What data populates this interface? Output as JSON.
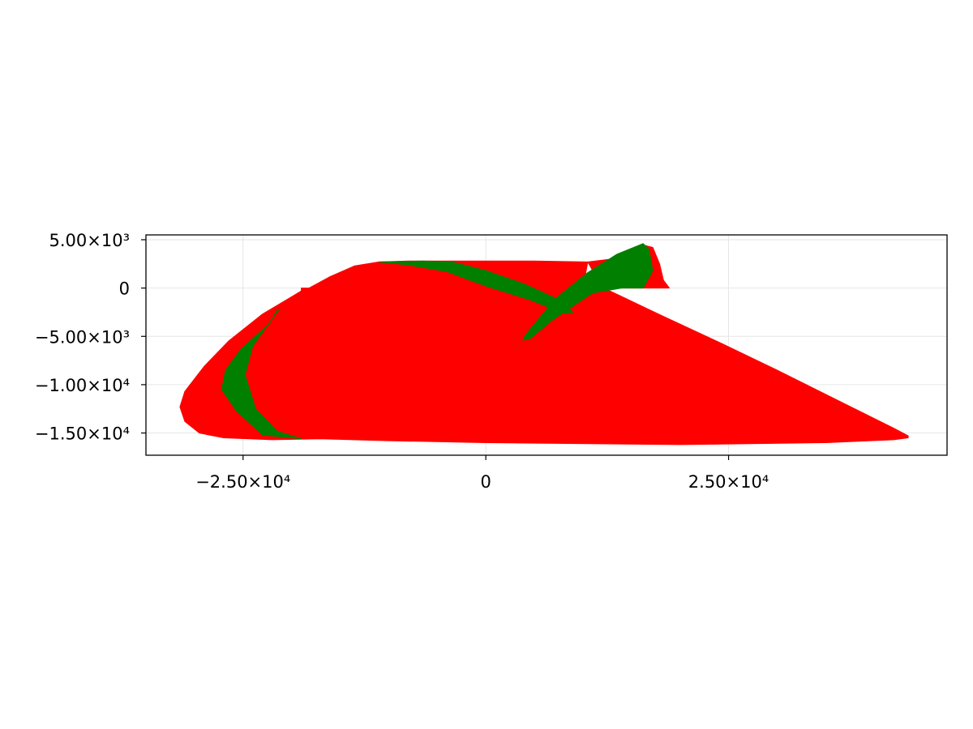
{
  "chart_data": {
    "type": "area",
    "title": "",
    "xlabel": "",
    "ylabel": "",
    "xlim": [
      -35000,
      47500
    ],
    "ylim": [
      -17300,
      5500
    ],
    "grid": true,
    "legend": "none",
    "x_ticks": [
      {
        "value": -25000,
        "label": "−2.50×10⁴"
      },
      {
        "value": 0,
        "label": "0"
      },
      {
        "value": 25000,
        "label": "2.50×10⁴"
      }
    ],
    "y_ticks": [
      {
        "value": 5000,
        "label": "5.00×10³"
      },
      {
        "value": 0,
        "label": "0"
      },
      {
        "value": -5000,
        "label": "−5.00×10³"
      },
      {
        "value": -10000,
        "label": "−1.00×10⁴"
      },
      {
        "value": -15000,
        "label": "−1.50×10⁴"
      }
    ],
    "series": [
      {
        "color": "#ff0000",
        "points": [
          [
            -19000,
            0
          ],
          [
            -19000,
            -300
          ],
          [
            -20000,
            -900
          ],
          [
            -23000,
            -2700
          ],
          [
            -26500,
            -5500
          ],
          [
            -29000,
            -8100
          ],
          [
            -31000,
            -10700
          ],
          [
            -31500,
            -12300
          ],
          [
            -31000,
            -13800
          ],
          [
            -29500,
            -15000
          ],
          [
            -27000,
            -15500
          ],
          [
            -22000,
            -15700
          ],
          [
            -17000,
            -15600
          ],
          [
            -10000,
            -15800
          ],
          [
            0,
            -16000
          ],
          [
            20000,
            -16200
          ],
          [
            35000,
            -16000
          ],
          [
            42000,
            -15700
          ],
          [
            43500,
            -15500
          ],
          [
            43500,
            -15300
          ],
          [
            42000,
            -14500
          ],
          [
            36000,
            -11500
          ],
          [
            30000,
            -8500
          ],
          [
            24000,
            -5600
          ],
          [
            18000,
            -2800
          ],
          [
            13000,
            -400
          ],
          [
            12000,
            0
          ],
          [
            10000,
            0
          ],
          [
            10500,
            2700
          ],
          [
            5000,
            2800
          ],
          [
            0,
            2800
          ],
          [
            -8000,
            2800
          ],
          [
            -11000,
            2700
          ],
          [
            -13500,
            2300
          ],
          [
            -16000,
            1200
          ],
          [
            -18200,
            0
          ]
        ]
      },
      {
        "color": "#ff0000",
        "points": [
          [
            10500,
            2700
          ],
          [
            13000,
            3000
          ],
          [
            16000,
            4500
          ],
          [
            17200,
            4200
          ],
          [
            17900,
            2500
          ],
          [
            18300,
            800
          ],
          [
            18900,
            0
          ],
          [
            12000,
            0
          ]
        ]
      },
      {
        "color": "#007f00",
        "points": [
          [
            -19000,
            -15600
          ],
          [
            -23000,
            -15200
          ],
          [
            -25700,
            -12700
          ],
          [
            -27200,
            -10500
          ],
          [
            -26800,
            -8500
          ],
          [
            -25200,
            -6300
          ],
          [
            -22300,
            -3700
          ],
          [
            -21500,
            -2300
          ],
          [
            -21300,
            -2200
          ],
          [
            -24000,
            -6000
          ],
          [
            -24800,
            -9000
          ],
          [
            -23700,
            -12500
          ],
          [
            -21500,
            -14800
          ]
        ]
      },
      {
        "color": "#007f00",
        "points": [
          [
            -11000,
            2700
          ],
          [
            -6500,
            2800
          ],
          [
            -3500,
            2700
          ],
          [
            0,
            1800
          ],
          [
            4000,
            400
          ],
          [
            7500,
            -1200
          ],
          [
            9000,
            -2500
          ],
          [
            8000,
            -2600
          ],
          [
            4500,
            -1200
          ],
          [
            0,
            200
          ],
          [
            -4000,
            1700
          ],
          [
            -8000,
            2400
          ]
        ]
      },
      {
        "color": "#007f00",
        "points": [
          [
            4000,
            -5000
          ],
          [
            3800,
            -5400
          ],
          [
            4600,
            -5200
          ],
          [
            7000,
            -3200
          ],
          [
            11000,
            -500
          ],
          [
            14000,
            0
          ],
          [
            16200,
            0
          ],
          [
            17200,
            1800
          ],
          [
            16800,
            4000
          ],
          [
            16200,
            4600
          ],
          [
            13500,
            3500
          ],
          [
            10500,
            1600
          ],
          [
            7300,
            -1000
          ],
          [
            5600,
            -3000
          ],
          [
            4300,
            -4600
          ]
        ]
      }
    ]
  }
}
